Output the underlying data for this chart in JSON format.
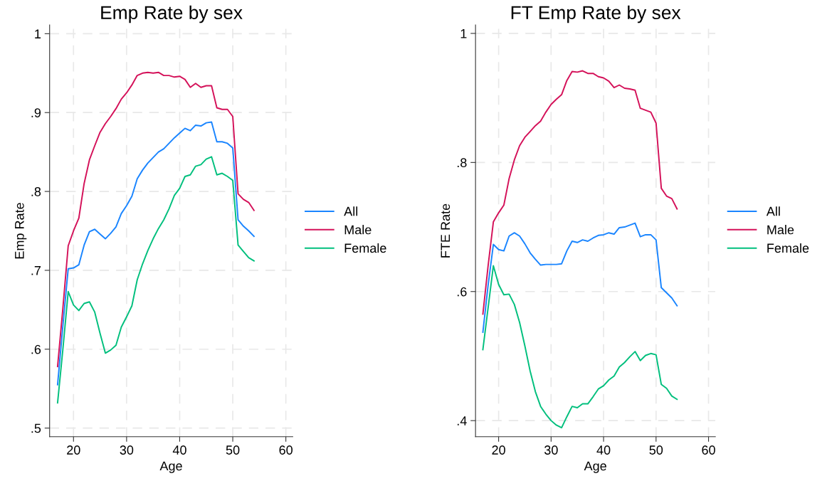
{
  "chart_data": [
    {
      "type": "line",
      "title": "Emp Rate by sex",
      "xlabel": "Age",
      "ylabel": "Emp Rate",
      "x": [
        17,
        18,
        19,
        20,
        21,
        22,
        23,
        24,
        25,
        26,
        27,
        28,
        29,
        30,
        31,
        32,
        33,
        34,
        35,
        36,
        37,
        38,
        39,
        40,
        41,
        42,
        43,
        44,
        45,
        46,
        47,
        48,
        49,
        50,
        51,
        52,
        53,
        54
      ],
      "series": [
        {
          "name": "All",
          "color": "#1a85ff",
          "values": [
            0.555,
            0.63,
            0.702,
            0.703,
            0.707,
            0.732,
            0.749,
            0.752,
            0.746,
            0.74,
            0.747,
            0.755,
            0.772,
            0.782,
            0.794,
            0.816,
            0.827,
            0.836,
            0.843,
            0.85,
            0.854,
            0.861,
            0.868,
            0.874,
            0.88,
            0.877,
            0.884,
            0.883,
            0.887,
            0.888,
            0.863,
            0.863,
            0.861,
            0.855,
            0.764,
            0.756,
            0.75,
            0.743
          ]
        },
        {
          "name": "Male",
          "color": "#d41159",
          "values": [
            0.578,
            0.652,
            0.731,
            0.75,
            0.766,
            0.81,
            0.84,
            0.858,
            0.875,
            0.886,
            0.895,
            0.905,
            0.917,
            0.925,
            0.935,
            0.947,
            0.95,
            0.951,
            0.95,
            0.951,
            0.947,
            0.947,
            0.945,
            0.946,
            0.942,
            0.932,
            0.937,
            0.932,
            0.934,
            0.934,
            0.906,
            0.904,
            0.904,
            0.895,
            0.797,
            0.79,
            0.786,
            0.776
          ]
        },
        {
          "name": "Female",
          "color": "#00bf7d",
          "values": [
            0.532,
            0.6,
            0.673,
            0.656,
            0.649,
            0.658,
            0.66,
            0.647,
            0.62,
            0.595,
            0.599,
            0.605,
            0.628,
            0.641,
            0.655,
            0.688,
            0.708,
            0.725,
            0.74,
            0.753,
            0.764,
            0.778,
            0.795,
            0.804,
            0.819,
            0.821,
            0.832,
            0.834,
            0.841,
            0.844,
            0.821,
            0.823,
            0.819,
            0.814,
            0.732,
            0.724,
            0.716,
            0.712
          ]
        }
      ],
      "xlim": [
        15.5,
        61.3
      ],
      "xticks": [
        20,
        30,
        40,
        50,
        60
      ],
      "ylim": [
        0.489,
        1.011
      ],
      "yticks": [
        {
          "value": 0.5,
          "label": ".5"
        },
        {
          "value": 0.6,
          "label": ".6"
        },
        {
          "value": 0.7,
          "label": ".7"
        },
        {
          "value": 0.8,
          "label": ".8"
        },
        {
          "value": 0.9,
          "label": ".9"
        },
        {
          "value": 1,
          "label": "1"
        }
      ],
      "grid": true,
      "legend": "right",
      "marker": "none",
      "line_style": "solid"
    },
    {
      "type": "line",
      "title": "FT Emp Rate by sex",
      "xlabel": "Age",
      "ylabel": "FTE Rate",
      "x": [
        17,
        18,
        19,
        20,
        21,
        22,
        23,
        24,
        25,
        26,
        27,
        28,
        29,
        30,
        31,
        32,
        33,
        34,
        35,
        36,
        37,
        38,
        39,
        40,
        41,
        42,
        43,
        44,
        45,
        46,
        47,
        48,
        49,
        50,
        51,
        52,
        53,
        54
      ],
      "series": [
        {
          "name": "All",
          "color": "#1a85ff",
          "values": [
            0.537,
            0.61,
            0.673,
            0.665,
            0.663,
            0.686,
            0.691,
            0.686,
            0.674,
            0.66,
            0.65,
            0.641,
            0.642,
            0.642,
            0.642,
            0.643,
            0.663,
            0.678,
            0.676,
            0.68,
            0.678,
            0.683,
            0.687,
            0.688,
            0.691,
            0.689,
            0.699,
            0.7,
            0.703,
            0.706,
            0.685,
            0.688,
            0.688,
            0.68,
            0.606,
            0.598,
            0.59,
            0.578
          ]
        },
        {
          "name": "Male",
          "color": "#d41159",
          "values": [
            0.565,
            0.64,
            0.708,
            0.722,
            0.734,
            0.775,
            0.804,
            0.826,
            0.839,
            0.848,
            0.857,
            0.864,
            0.878,
            0.89,
            0.898,
            0.905,
            0.927,
            0.941,
            0.94,
            0.942,
            0.938,
            0.938,
            0.933,
            0.931,
            0.926,
            0.916,
            0.92,
            0.915,
            0.914,
            0.912,
            0.884,
            0.881,
            0.878,
            0.861,
            0.76,
            0.748,
            0.744,
            0.728
          ]
        },
        {
          "name": "Female",
          "color": "#00bf7d",
          "values": [
            0.51,
            0.575,
            0.64,
            0.611,
            0.595,
            0.596,
            0.58,
            0.552,
            0.516,
            0.477,
            0.445,
            0.422,
            0.41,
            0.4,
            0.393,
            0.389,
            0.406,
            0.422,
            0.42,
            0.426,
            0.426,
            0.437,
            0.449,
            0.454,
            0.463,
            0.469,
            0.483,
            0.49,
            0.499,
            0.507,
            0.493,
            0.501,
            0.504,
            0.502,
            0.456,
            0.45,
            0.438,
            0.433
          ]
        }
      ],
      "xlim": [
        15.6,
        61.3
      ],
      "xticks": [
        20,
        30,
        40,
        50,
        60
      ],
      "ylim": [
        0.375,
        1.013
      ],
      "yticks": [
        {
          "value": 0.4,
          "label": ".4"
        },
        {
          "value": 0.6,
          "label": ".6"
        },
        {
          "value": 0.8,
          "label": ".8"
        },
        {
          "value": 1,
          "label": "1"
        }
      ],
      "grid": true,
      "legend": "right",
      "marker": "none",
      "line_style": "solid"
    }
  ]
}
